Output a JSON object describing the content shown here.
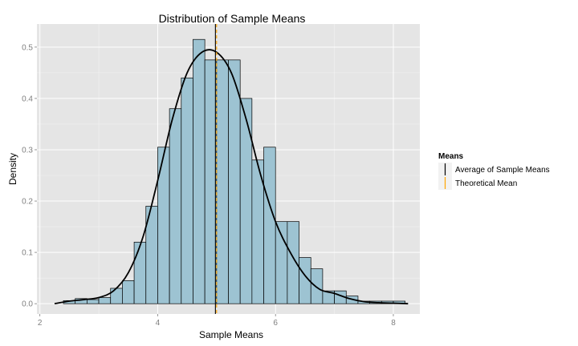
{
  "chart_data": {
    "type": "bar",
    "title": "Distribution of Sample Means",
    "xlabel": "Sample Means",
    "ylabel": "Density",
    "xlim": [
      1.95,
      8.45
    ],
    "ylim": [
      -0.02,
      0.545
    ],
    "x_ticks": [
      2,
      4,
      6,
      8
    ],
    "y_ticks": [
      0.0,
      0.1,
      0.2,
      0.3,
      0.4,
      0.5
    ],
    "y_tick_labels": [
      "0.0",
      "0.1",
      "0.2",
      "0.3",
      "0.4",
      "0.5"
    ],
    "grid": true,
    "bin_width": 0.2,
    "bins": [
      {
        "x0": 2.4,
        "value": 0.006
      },
      {
        "x0": 2.6,
        "value": 0.01
      },
      {
        "x0": 2.8,
        "value": 0.008
      },
      {
        "x0": 3.0,
        "value": 0.012
      },
      {
        "x0": 3.2,
        "value": 0.03
      },
      {
        "x0": 3.4,
        "value": 0.045
      },
      {
        "x0": 3.6,
        "value": 0.12
      },
      {
        "x0": 3.8,
        "value": 0.19
      },
      {
        "x0": 4.0,
        "value": 0.305
      },
      {
        "x0": 4.2,
        "value": 0.38
      },
      {
        "x0": 4.4,
        "value": 0.44
      },
      {
        "x0": 4.6,
        "value": 0.515
      },
      {
        "x0": 4.8,
        "value": 0.475
      },
      {
        "x0": 5.0,
        "value": 0.475
      },
      {
        "x0": 5.2,
        "value": 0.475
      },
      {
        "x0": 5.4,
        "value": 0.4
      },
      {
        "x0": 5.6,
        "value": 0.28
      },
      {
        "x0": 5.8,
        "value": 0.305
      },
      {
        "x0": 6.0,
        "value": 0.16
      },
      {
        "x0": 6.2,
        "value": 0.16
      },
      {
        "x0": 6.4,
        "value": 0.09
      },
      {
        "x0": 6.6,
        "value": 0.068
      },
      {
        "x0": 6.8,
        "value": 0.025
      },
      {
        "x0": 7.0,
        "value": 0.025
      },
      {
        "x0": 7.2,
        "value": 0.015
      },
      {
        "x0": 7.4,
        "value": 0.005
      },
      {
        "x0": 7.6,
        "value": 0.005
      },
      {
        "x0": 7.8,
        "value": 0.005
      },
      {
        "x0": 8.0,
        "value": 0.005
      }
    ],
    "density_curve": {
      "x": [
        2.25,
        2.5,
        2.75,
        3.0,
        3.25,
        3.5,
        3.75,
        4.0,
        4.25,
        4.5,
        4.75,
        5.0,
        5.25,
        5.5,
        5.75,
        6.0,
        6.25,
        6.5,
        6.75,
        7.0,
        7.25,
        7.5,
        7.75,
        8.0,
        8.25
      ],
      "y": [
        0.0,
        0.005,
        0.008,
        0.012,
        0.025,
        0.06,
        0.13,
        0.24,
        0.36,
        0.45,
        0.49,
        0.49,
        0.45,
        0.36,
        0.25,
        0.16,
        0.1,
        0.055,
        0.028,
        0.02,
        0.01,
        0.004,
        0.002,
        0.001,
        0.0
      ]
    },
    "vlines": [
      {
        "name": "Average of Sample Means",
        "x": 4.98,
        "color": "#000000"
      },
      {
        "name": "Theoretical Mean",
        "x": 5.0,
        "color": "#FFA500"
      }
    ],
    "legend": {
      "title": "Means",
      "position": "right",
      "entries": [
        "Average of Sample Means",
        "Theoretical Mean"
      ]
    },
    "colors": {
      "panel_background": "#E5E5E5",
      "grid_major": "#FFFFFF",
      "grid_minor": "#F2F2F2",
      "bar_fill": "#9DC3D2",
      "bar_outline": "#000000",
      "density_line": "#000000",
      "average_line": "#000000",
      "theoretical_line": "#FFA500"
    }
  }
}
